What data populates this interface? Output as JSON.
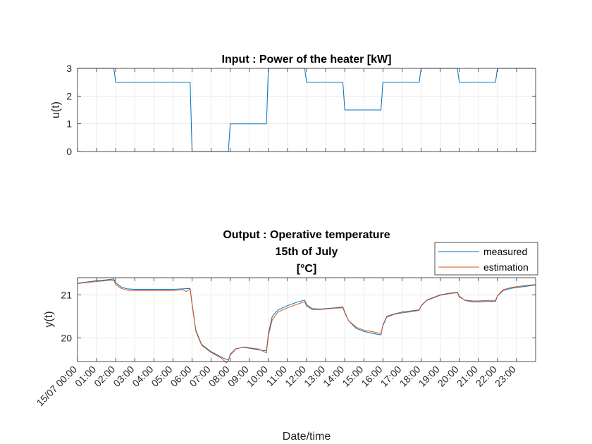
{
  "chart_data": [
    {
      "type": "line",
      "title": "Input : Power of the heater [kW]",
      "xlabel": "",
      "ylabel": "u(t)",
      "ylim": [
        0,
        3
      ],
      "yticks": [
        "0",
        "1",
        "2",
        "3"
      ],
      "xlim": [
        0,
        24
      ],
      "grid": true,
      "series": [
        {
          "color": "#0072BD",
          "x": [
            0,
            1.9,
            2.0,
            5.9,
            6.0,
            7.9,
            8.0,
            9.9,
            10.0,
            11.9,
            12.0,
            13.9,
            14.0,
            15.9,
            16.0,
            17.9,
            18.0,
            19.9,
            20.0,
            21.9,
            22.0,
            24.0
          ],
          "y": [
            3,
            3,
            2.5,
            2.5,
            0,
            0,
            1,
            1,
            3,
            3,
            2.5,
            2.5,
            1.5,
            1.5,
            2.5,
            2.5,
            3,
            3,
            2.5,
            2.5,
            3,
            3
          ]
        }
      ]
    },
    {
      "type": "line",
      "title": "Output :  Operative temperature",
      "subtitle_lines": [
        "15th of July",
        "[°C]"
      ],
      "xlabel": "Date/time",
      "ylabel": "y(t)",
      "ylim": [
        19.45,
        21.4
      ],
      "yticks": [
        20,
        21
      ],
      "xlim": [
        0,
        24
      ],
      "xticks": [
        "15/07 00:00",
        "01:00",
        "02:00",
        "03:00",
        "04:00",
        "05:00",
        "06:00",
        "07:00",
        "08:00",
        "09:00",
        "10:00",
        "11:00",
        "12:00",
        "13:00",
        "14:00",
        "15:00",
        "16:00",
        "17:00",
        "18:00",
        "19:00",
        "20:00",
        "21:00",
        "22:00",
        "23:00"
      ],
      "grid": true,
      "legend": "top-right",
      "series": [
        {
          "name": "measured",
          "color": "#0072BD",
          "x": [
            0,
            0.5,
            1.0,
            1.5,
            1.9,
            2.0,
            2.3,
            2.6,
            3.0,
            4.0,
            5.0,
            5.5,
            5.9,
            6.0,
            6.2,
            6.5,
            7.0,
            7.5,
            7.9,
            8.0,
            8.3,
            8.7,
            9.0,
            9.5,
            9.9,
            10.0,
            10.2,
            10.5,
            11.0,
            11.5,
            11.9,
            12.0,
            12.3,
            12.7,
            13.0,
            13.5,
            13.9,
            14.0,
            14.2,
            14.6,
            15.0,
            15.5,
            15.9,
            16.0,
            16.2,
            16.6,
            17.0,
            17.5,
            17.9,
            18.0,
            18.3,
            18.7,
            19.0,
            19.5,
            19.9,
            20.0,
            20.3,
            20.7,
            21.0,
            21.5,
            21.9,
            22.0,
            22.3,
            22.7,
            23.0,
            23.5,
            24.0
          ],
          "y": [
            21.27,
            21.3,
            21.33,
            21.35,
            21.37,
            21.28,
            21.18,
            21.14,
            21.13,
            21.13,
            21.13,
            21.14,
            21.15,
            20.8,
            20.18,
            19.85,
            19.68,
            19.56,
            19.48,
            19.62,
            19.75,
            19.78,
            19.76,
            19.72,
            19.7,
            20.1,
            20.5,
            20.65,
            20.75,
            20.83,
            20.88,
            20.77,
            20.68,
            20.67,
            20.68,
            20.7,
            20.72,
            20.6,
            20.4,
            20.22,
            20.15,
            20.1,
            20.07,
            20.3,
            20.5,
            20.56,
            20.6,
            20.63,
            20.65,
            20.75,
            20.88,
            20.95,
            21.0,
            21.04,
            21.06,
            20.97,
            20.87,
            20.84,
            20.84,
            20.85,
            20.85,
            20.97,
            21.1,
            21.15,
            21.17,
            21.2,
            21.23
          ]
        },
        {
          "name": "estimation",
          "color": "#D95319",
          "x": [
            0,
            0.5,
            1.0,
            1.5,
            1.9,
            2.0,
            2.3,
            2.6,
            3.0,
            4.0,
            5.0,
            5.5,
            5.7,
            5.9,
            6.0,
            6.2,
            6.5,
            7.0,
            7.5,
            7.8,
            7.9,
            8.0,
            8.3,
            8.7,
            9.0,
            9.5,
            9.9,
            10.0,
            10.2,
            10.5,
            11.0,
            11.5,
            11.9,
            12.0,
            12.3,
            12.7,
            13.0,
            13.5,
            13.9,
            14.0,
            14.2,
            14.6,
            15.0,
            15.5,
            15.9,
            16.0,
            16.2,
            16.6,
            17.0,
            17.5,
            17.9,
            18.0,
            18.3,
            18.7,
            19.0,
            19.5,
            19.9,
            20.0,
            20.3,
            20.7,
            21.0,
            21.5,
            21.9,
            22.0,
            22.3,
            22.7,
            23.0,
            23.5,
            24.0
          ],
          "y": [
            21.26,
            21.29,
            21.31,
            21.33,
            21.34,
            21.24,
            21.15,
            21.11,
            21.1,
            21.1,
            21.1,
            21.12,
            21.08,
            21.14,
            20.78,
            20.15,
            19.83,
            19.66,
            19.54,
            19.42,
            19.47,
            19.6,
            19.74,
            19.79,
            19.77,
            19.74,
            19.65,
            20.05,
            20.42,
            20.6,
            20.7,
            20.78,
            20.84,
            20.74,
            20.66,
            20.66,
            20.67,
            20.69,
            20.7,
            20.58,
            20.4,
            20.25,
            20.18,
            20.14,
            20.1,
            20.28,
            20.48,
            20.55,
            20.58,
            20.61,
            20.64,
            20.74,
            20.87,
            20.94,
            20.99,
            21.03,
            21.05,
            20.95,
            20.88,
            20.86,
            20.86,
            20.87,
            20.87,
            20.98,
            21.12,
            21.17,
            21.19,
            21.22,
            21.24
          ]
        }
      ]
    }
  ]
}
